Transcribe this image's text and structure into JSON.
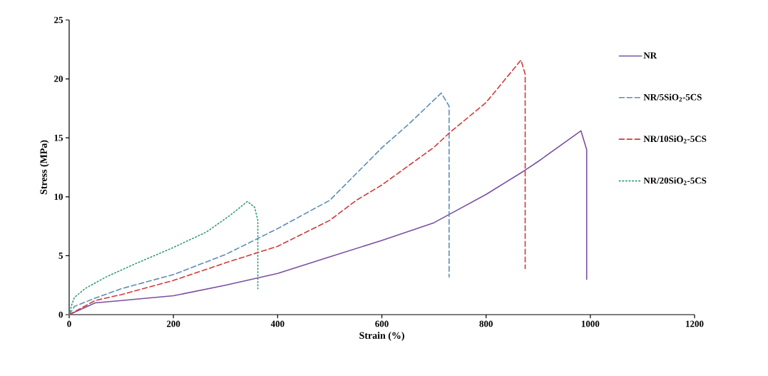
{
  "chart_data": {
    "type": "line",
    "xlabel": "Strain (%)",
    "ylabel": "Stress (MPa)",
    "xlim": [
      0,
      1200
    ],
    "xticks": [
      0,
      200,
      400,
      600,
      800,
      1000,
      1200
    ],
    "ylim": [
      0,
      25
    ],
    "yticks": [
      0,
      5,
      10,
      15,
      20,
      25
    ],
    "grid": false,
    "legend": "right",
    "marker": "none",
    "series": [
      {
        "name": "NR",
        "color": "#7b4fa0",
        "line_style": "solid",
        "x": [
          0,
          50,
          100,
          200,
          300,
          400,
          500,
          600,
          700,
          729,
          800,
          873,
          900,
          982,
          993,
          993
        ],
        "values": [
          0,
          1.0,
          1.2,
          1.6,
          2.5,
          3.5,
          4.9,
          6.3,
          7.8,
          8.5,
          10.2,
          12.2,
          13.0,
          15.6,
          14.0,
          3.0
        ]
      },
      {
        "name": "NR/5SiO$_{2}$-5CS",
        "color": "#5b8db8",
        "line_style": "dashed",
        "x": [
          0,
          10,
          50,
          100,
          200,
          300,
          400,
          500,
          601,
          650,
          714,
          729,
          729
        ],
        "values": [
          0,
          0.7,
          1.4,
          2.2,
          3.4,
          5.1,
          7.3,
          9.7,
          14.2,
          16.1,
          18.8,
          17.7,
          3.2
        ]
      },
      {
        "name": "NR/10SiO$_{2}$-5CS",
        "color": "#d03a3a",
        "line_style": "dashed",
        "x": [
          0,
          50,
          100,
          200,
          300,
          400,
          500,
          551,
          600,
          700,
          729,
          800,
          867,
          875,
          875
        ],
        "values": [
          0,
          1.2,
          1.7,
          2.9,
          4.4,
          5.8,
          8.0,
          9.7,
          11.0,
          14.2,
          15.4,
          18.0,
          21.6,
          20.4,
          3.9
        ]
      },
      {
        "name": "NR/20SiO$_{2}$-5CS",
        "color": "#2e9e6e",
        "line_style": "dotted",
        "x": [
          0,
          5,
          10,
          30,
          71,
          126,
          195,
          263,
          308,
          342,
          356,
          362,
          362
        ],
        "values": [
          0,
          0.85,
          1.45,
          2.2,
          3.2,
          4.3,
          5.6,
          7.0,
          8.4,
          9.6,
          9.1,
          8.0,
          2.2
        ]
      }
    ]
  }
}
